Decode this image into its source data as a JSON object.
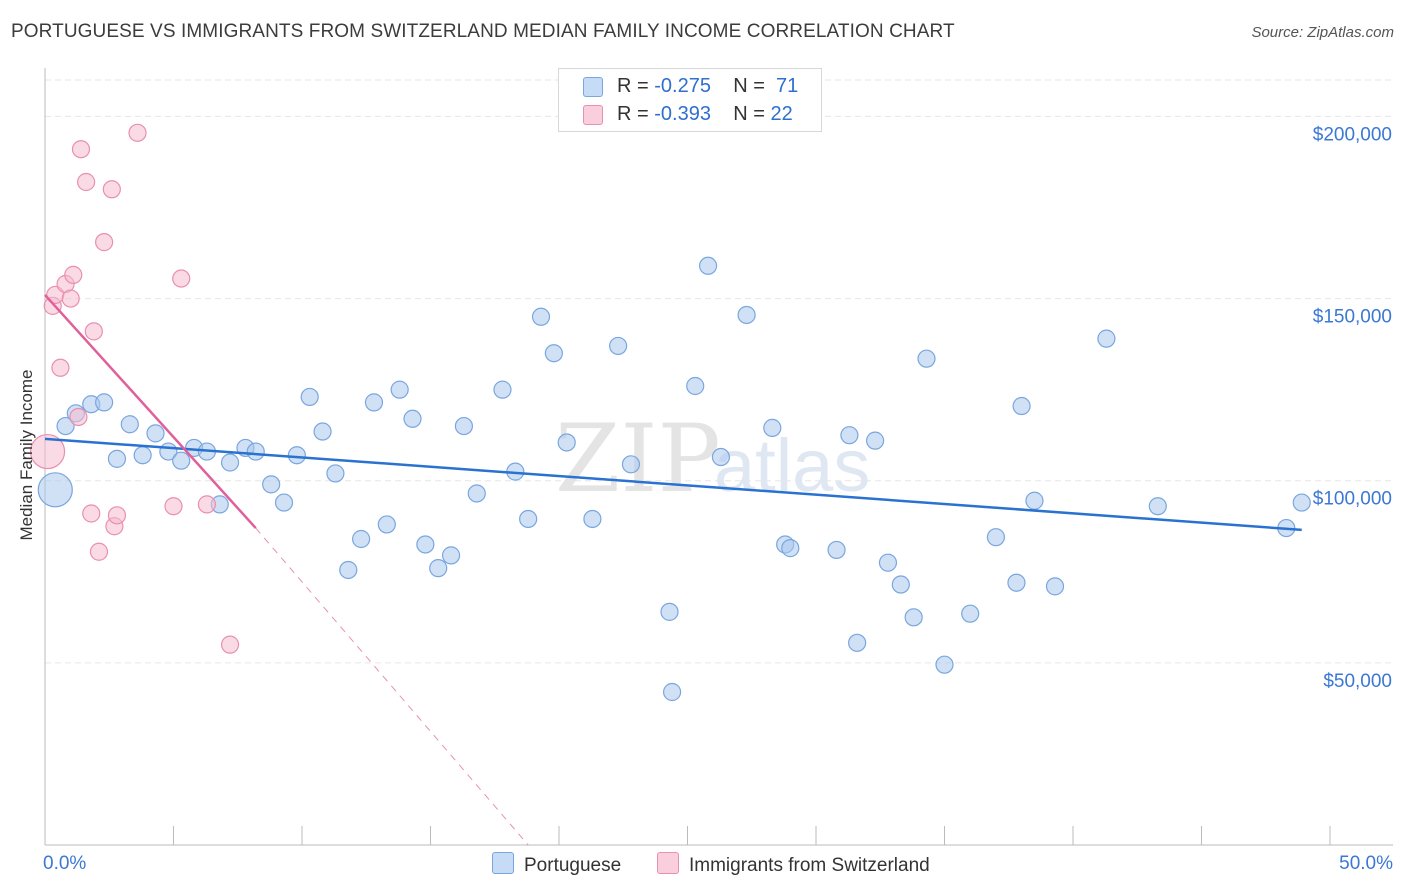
{
  "title": "PORTUGUESE VS IMMIGRANTS FROM SWITZERLAND MEDIAN FAMILY INCOME CORRELATION CHART",
  "source": "Source: ZipAtlas.com",
  "watermark": {
    "zip": "ZIP",
    "atlas": "atlas"
  },
  "legend": {
    "portuguese": {
      "r_label": "R =",
      "r_value": "-0.275",
      "n_label": "N =",
      "n_value": "71"
    },
    "swiss": {
      "r_label": "R =",
      "r_value": "-0.393",
      "n_label": "N =",
      "n_value": "22"
    }
  },
  "bottom_legend": {
    "portuguese": "Portuguese",
    "swiss": "Immigrants from Switzerland"
  },
  "colors": {
    "blue_fill": "#a9c8ef",
    "blue_stroke": "#7aa6de",
    "blue_line": "#2a72d0",
    "pink_fill": "#f6bcd0",
    "pink_stroke": "#e98fb0",
    "pink_line": "#e0609a",
    "axis_text": "#3b78d4",
    "grid": "#e6e6e6"
  },
  "chart_data": {
    "type": "scatter",
    "title": "PORTUGUESE VS IMMIGRANTS FROM SWITZERLAND MEDIAN FAMILY INCOME CORRELATION CHART",
    "xlabel": "",
    "ylabel": "Median Family Income",
    "xlim": [
      0,
      50
    ],
    "ylim": [
      0,
      210000
    ],
    "x_tick_labels": [
      "0.0%",
      "50.0%"
    ],
    "y_ticks": [
      50000,
      100000,
      150000,
      200000
    ],
    "y_tick_labels": [
      "$50,000",
      "$100,000",
      "$150,000",
      "$200,000"
    ],
    "grid": true,
    "series": [
      {
        "name": "Portuguese",
        "r": -0.275,
        "n": 71,
        "trend": {
          "x": [
            0,
            48.9
          ],
          "y": [
            111500,
            86500
          ]
        },
        "points": [
          {
            "x": 0.4,
            "y": 97500,
            "big": true
          },
          {
            "x": 0.8,
            "y": 115000
          },
          {
            "x": 1.2,
            "y": 118500
          },
          {
            "x": 1.8,
            "y": 121000
          },
          {
            "x": 2.3,
            "y": 121500
          },
          {
            "x": 2.8,
            "y": 106000
          },
          {
            "x": 3.3,
            "y": 115500
          },
          {
            "x": 3.8,
            "y": 107000
          },
          {
            "x": 4.3,
            "y": 113000
          },
          {
            "x": 4.8,
            "y": 108000
          },
          {
            "x": 5.3,
            "y": 105500
          },
          {
            "x": 5.8,
            "y": 109000
          },
          {
            "x": 6.3,
            "y": 108000
          },
          {
            "x": 6.8,
            "y": 93500
          },
          {
            "x": 7.2,
            "y": 105000
          },
          {
            "x": 7.8,
            "y": 109000
          },
          {
            "x": 8.2,
            "y": 108000
          },
          {
            "x": 8.8,
            "y": 99000
          },
          {
            "x": 9.3,
            "y": 94000
          },
          {
            "x": 9.8,
            "y": 107000
          },
          {
            "x": 10.3,
            "y": 123000
          },
          {
            "x": 10.8,
            "y": 113500
          },
          {
            "x": 11.3,
            "y": 102000
          },
          {
            "x": 11.8,
            "y": 75500
          },
          {
            "x": 12.3,
            "y": 84000
          },
          {
            "x": 12.8,
            "y": 121500
          },
          {
            "x": 13.3,
            "y": 88000
          },
          {
            "x": 13.8,
            "y": 125000
          },
          {
            "x": 14.3,
            "y": 117000
          },
          {
            "x": 14.8,
            "y": 82500
          },
          {
            "x": 15.3,
            "y": 76000
          },
          {
            "x": 15.8,
            "y": 79500
          },
          {
            "x": 16.3,
            "y": 115000
          },
          {
            "x": 16.8,
            "y": 96500
          },
          {
            "x": 17.8,
            "y": 125000
          },
          {
            "x": 18.3,
            "y": 102500
          },
          {
            "x": 18.8,
            "y": 89500
          },
          {
            "x": 19.3,
            "y": 145000
          },
          {
            "x": 19.8,
            "y": 135000
          },
          {
            "x": 20.3,
            "y": 110500
          },
          {
            "x": 21.3,
            "y": 89500
          },
          {
            "x": 22.3,
            "y": 137000
          },
          {
            "x": 22.8,
            "y": 104500
          },
          {
            "x": 24.3,
            "y": 64000
          },
          {
            "x": 24.4,
            "y": 42000
          },
          {
            "x": 25.3,
            "y": 126000
          },
          {
            "x": 25.8,
            "y": 159000
          },
          {
            "x": 26.3,
            "y": 106500
          },
          {
            "x": 27.3,
            "y": 145500
          },
          {
            "x": 28.3,
            "y": 114500
          },
          {
            "x": 28.8,
            "y": 82500
          },
          {
            "x": 29.0,
            "y": 81500
          },
          {
            "x": 30.8,
            "y": 81000
          },
          {
            "x": 31.3,
            "y": 112500
          },
          {
            "x": 31.6,
            "y": 55500
          },
          {
            "x": 32.3,
            "y": 111000
          },
          {
            "x": 32.8,
            "y": 77500
          },
          {
            "x": 33.3,
            "y": 71500
          },
          {
            "x": 33.8,
            "y": 62500
          },
          {
            "x": 34.3,
            "y": 133500
          },
          {
            "x": 35.0,
            "y": 49500
          },
          {
            "x": 36.0,
            "y": 63500
          },
          {
            "x": 37.0,
            "y": 84500
          },
          {
            "x": 37.8,
            "y": 72000
          },
          {
            "x": 38.0,
            "y": 120500
          },
          {
            "x": 38.5,
            "y": 94500
          },
          {
            "x": 39.3,
            "y": 71000
          },
          {
            "x": 41.3,
            "y": 139000
          },
          {
            "x": 43.3,
            "y": 93000
          },
          {
            "x": 48.3,
            "y": 87000
          },
          {
            "x": 48.9,
            "y": 94000
          }
        ]
      },
      {
        "name": "Immigrants from Switzerland",
        "r": -0.393,
        "n": 22,
        "trend": {
          "x": [
            0,
            8.2
          ],
          "y": [
            151000,
            87000
          ]
        },
        "trend_extension": {
          "x": [
            8.2,
            18.8
          ],
          "y": [
            87000,
            0
          ]
        },
        "points": [
          {
            "x": 0.1,
            "y": 108000,
            "big": true
          },
          {
            "x": 0.3,
            "y": 148000
          },
          {
            "x": 0.4,
            "y": 151000
          },
          {
            "x": 0.6,
            "y": 131000
          },
          {
            "x": 0.8,
            "y": 154000
          },
          {
            "x": 1.0,
            "y": 150000
          },
          {
            "x": 1.1,
            "y": 156500
          },
          {
            "x": 1.3,
            "y": 117500
          },
          {
            "x": 1.4,
            "y": 191000
          },
          {
            "x": 1.6,
            "y": 182000
          },
          {
            "x": 1.8,
            "y": 91000
          },
          {
            "x": 1.9,
            "y": 141000
          },
          {
            "x": 2.1,
            "y": 80500
          },
          {
            "x": 2.3,
            "y": 165500
          },
          {
            "x": 2.6,
            "y": 180000
          },
          {
            "x": 2.7,
            "y": 87500
          },
          {
            "x": 2.8,
            "y": 90500
          },
          {
            "x": 3.6,
            "y": 195500
          },
          {
            "x": 5.0,
            "y": 93000
          },
          {
            "x": 5.3,
            "y": 155500
          },
          {
            "x": 6.3,
            "y": 93500
          },
          {
            "x": 7.2,
            "y": 55000
          }
        ]
      }
    ]
  }
}
